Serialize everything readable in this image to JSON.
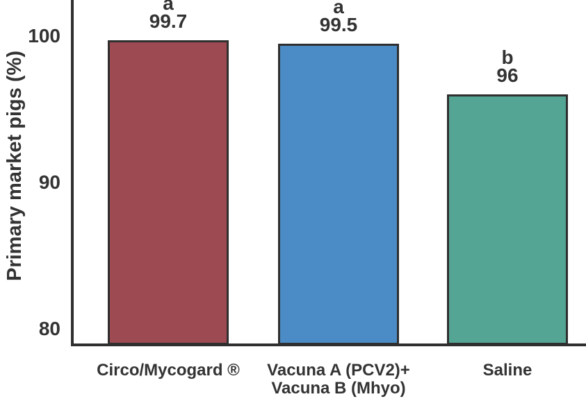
{
  "chart_data": {
    "type": "bar",
    "title": "",
    "xlabel": "",
    "ylabel": "Primary market pigs (%)",
    "categories": [
      "Circo/Mycogard ®",
      "Vacuna A (PCV2)+\nVacuna B (Mhyo)",
      "Saline"
    ],
    "values": [
      99.7,
      99.5,
      96
    ],
    "value_labels": [
      "99.7",
      "99.5",
      "96"
    ],
    "significance_letters": [
      "a",
      "a",
      "b"
    ],
    "bar_colors": [
      "#9D4A53",
      "#4B8CC6",
      "#55A594"
    ],
    "bar_edge_color": "#2F2F2F",
    "axis_color": "#2F2F2F",
    "text_color": "#333333",
    "yticks": [
      80,
      90,
      100
    ],
    "ytick_labels": [
      "80",
      "90",
      "100"
    ],
    "ylim": [
      79,
      102.5
    ],
    "grid": false,
    "legend": null
  }
}
